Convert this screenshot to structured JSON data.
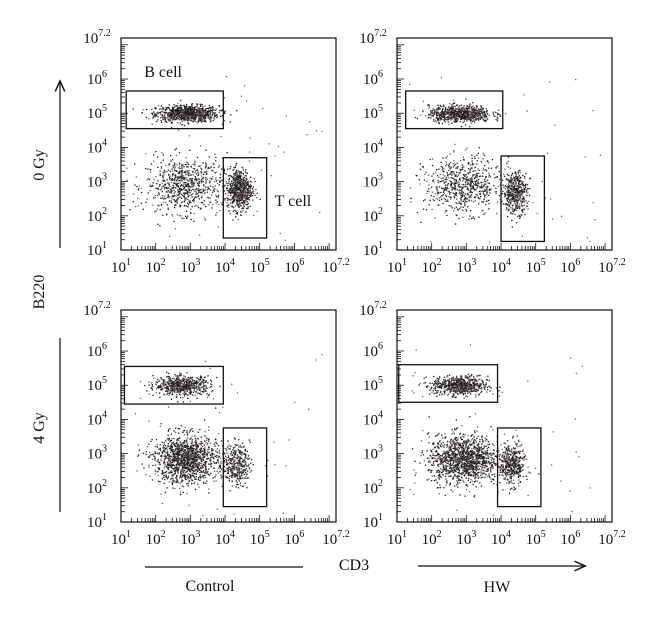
{
  "figure": {
    "y_axis_title": "B220",
    "x_axis_title": "CD3",
    "row_labels": [
      "0 Gy",
      "4 Gy"
    ],
    "column_labels": [
      "Control",
      "HW"
    ],
    "gate_labels": {
      "b_cell": "B cell",
      "t_cell": "T cell"
    }
  },
  "chart_data": [
    {
      "type": "scatter",
      "row": "0 Gy",
      "column": "Control",
      "x_scale": "log",
      "y_scale": "log",
      "xlim": [
        1,
        7.2
      ],
      "ylim": [
        1,
        7.2
      ],
      "x_ticks": [
        "10^1",
        "10^2",
        "10^3",
        "10^4",
        "10^5",
        "10^6",
        "10^7.2"
      ],
      "y_ticks": [
        "10^1",
        "10^2",
        "10^3",
        "10^4",
        "10^5",
        "10^6",
        "10^7.2"
      ],
      "clusters": [
        {
          "name": "",
          "x_log10": 2.9,
          "y_log10": 5.0,
          "spread": [
            0.45,
            0.12
          ],
          "n": 900
        },
        {
          "name": "",
          "x_log10": 2.8,
          "y_log10": 2.9,
          "spread": [
            0.55,
            0.4
          ],
          "n": 700
        },
        {
          "name": "",
          "x_log10": 4.4,
          "y_log10": 2.8,
          "spread": [
            0.18,
            0.3
          ],
          "n": 650
        }
      ],
      "gates": [
        {
          "label": "B cell",
          "x_log10": [
            1.15,
            3.95
          ],
          "y_log10": [
            4.55,
            5.65
          ]
        },
        {
          "label": "T cell",
          "x_log10": [
            3.95,
            5.2
          ],
          "y_log10": [
            1.35,
            3.7
          ]
        }
      ]
    },
    {
      "type": "scatter",
      "row": "0 Gy",
      "column": "HW",
      "x_scale": "log",
      "y_scale": "log",
      "xlim": [
        1,
        7.2
      ],
      "ylim": [
        1,
        7.2
      ],
      "x_ticks": [
        "10^1",
        "10^2",
        "10^3",
        "10^4",
        "10^5",
        "10^6",
        "10^7.2"
      ],
      "y_ticks": [
        "10^1",
        "10^2",
        "10^3",
        "10^4",
        "10^5",
        "10^6",
        "10^7.2"
      ],
      "clusters": [
        {
          "name": "",
          "x_log10": 2.8,
          "y_log10": 5.0,
          "spread": [
            0.45,
            0.12
          ],
          "n": 750
        },
        {
          "name": "",
          "x_log10": 2.9,
          "y_log10": 2.9,
          "spread": [
            0.55,
            0.4
          ],
          "n": 650
        },
        {
          "name": "",
          "x_log10": 4.4,
          "y_log10": 2.7,
          "spread": [
            0.17,
            0.3
          ],
          "n": 450
        }
      ],
      "gates": [
        {
          "label": "",
          "x_log10": [
            1.25,
            4.05
          ],
          "y_log10": [
            4.55,
            5.65
          ]
        },
        {
          "label": "",
          "x_log10": [
            4.0,
            5.25
          ],
          "y_log10": [
            1.25,
            3.75
          ]
        }
      ]
    },
    {
      "type": "scatter",
      "row": "4 Gy",
      "column": "Control",
      "x_scale": "log",
      "y_scale": "log",
      "xlim": [
        1,
        7.2
      ],
      "ylim": [
        1,
        7.2
      ],
      "x_ticks": [
        "10^1",
        "10^2",
        "10^3",
        "10^4",
        "10^5",
        "10^6",
        "10^7.2"
      ],
      "y_ticks": [
        "10^1",
        "10^2",
        "10^3",
        "10^4",
        "10^5",
        "10^6",
        "10^7.2"
      ],
      "clusters": [
        {
          "name": "",
          "x_log10": 2.75,
          "y_log10": 5.0,
          "spread": [
            0.4,
            0.14
          ],
          "n": 600
        },
        {
          "name": "",
          "x_log10": 2.85,
          "y_log10": 2.85,
          "spread": [
            0.45,
            0.35
          ],
          "n": 1300
        },
        {
          "name": "",
          "x_log10": 4.3,
          "y_log10": 2.7,
          "spread": [
            0.2,
            0.3
          ],
          "n": 350
        }
      ],
      "gates": [
        {
          "label": "",
          "x_log10": [
            1.1,
            3.95
          ],
          "y_log10": [
            4.45,
            5.55
          ]
        },
        {
          "label": "",
          "x_log10": [
            3.95,
            5.2
          ],
          "y_log10": [
            1.45,
            3.75
          ]
        }
      ]
    },
    {
      "type": "scatter",
      "row": "4 Gy",
      "column": "HW",
      "x_scale": "log",
      "y_scale": "log",
      "xlim": [
        1,
        7.2
      ],
      "ylim": [
        1,
        7.2
      ],
      "x_ticks": [
        "10^1",
        "10^2",
        "10^3",
        "10^4",
        "10^5",
        "10^6",
        "10^7.2"
      ],
      "y_ticks": [
        "10^1",
        "10^2",
        "10^3",
        "10^4",
        "10^5",
        "10^6",
        "10^7.2"
      ],
      "clusters": [
        {
          "name": "",
          "x_log10": 2.8,
          "y_log10": 5.0,
          "spread": [
            0.4,
            0.14
          ],
          "n": 650
        },
        {
          "name": "",
          "x_log10": 2.9,
          "y_log10": 2.85,
          "spread": [
            0.5,
            0.35
          ],
          "n": 1300
        },
        {
          "name": "",
          "x_log10": 4.3,
          "y_log10": 2.7,
          "spread": [
            0.18,
            0.3
          ],
          "n": 400
        }
      ],
      "gates": [
        {
          "label": "",
          "x_log10": [
            1.05,
            3.9
          ],
          "y_log10": [
            4.5,
            5.6
          ]
        },
        {
          "label": "",
          "x_log10": [
            3.9,
            5.15
          ],
          "y_log10": [
            1.45,
            3.75
          ]
        }
      ]
    }
  ]
}
